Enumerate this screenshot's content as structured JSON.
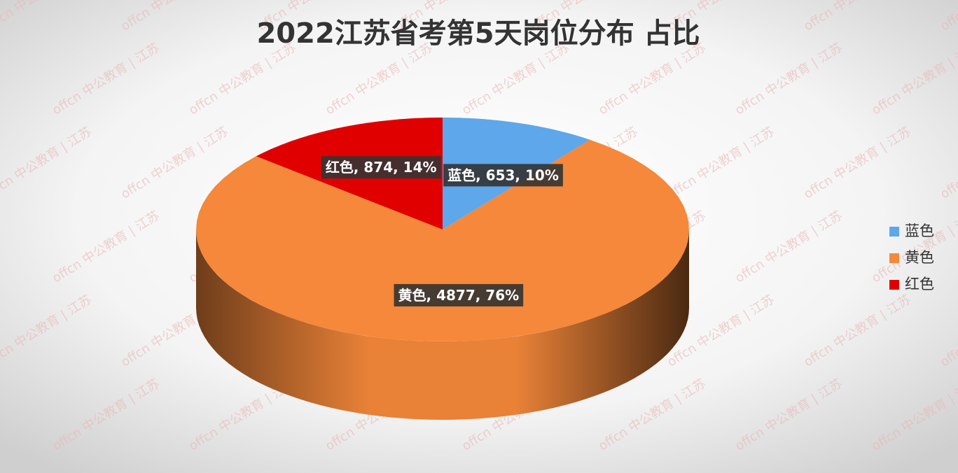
{
  "chart_data": {
    "type": "pie3d",
    "title": "2022江苏省考第5天岗位分布 占比",
    "categories": [
      "蓝色",
      "黄色",
      "红色"
    ],
    "values": [
      653,
      4877,
      874
    ],
    "value_labels": [
      "蓝色, 653, 10%",
      "黄色, 4877, 76%",
      "红色, 874, 14%"
    ],
    "colors": [
      "#5ea7ea",
      "#f5883a",
      "#e00000"
    ],
    "legend": "right",
    "watermark": "offcn 中公教育 | 江苏"
  }
}
